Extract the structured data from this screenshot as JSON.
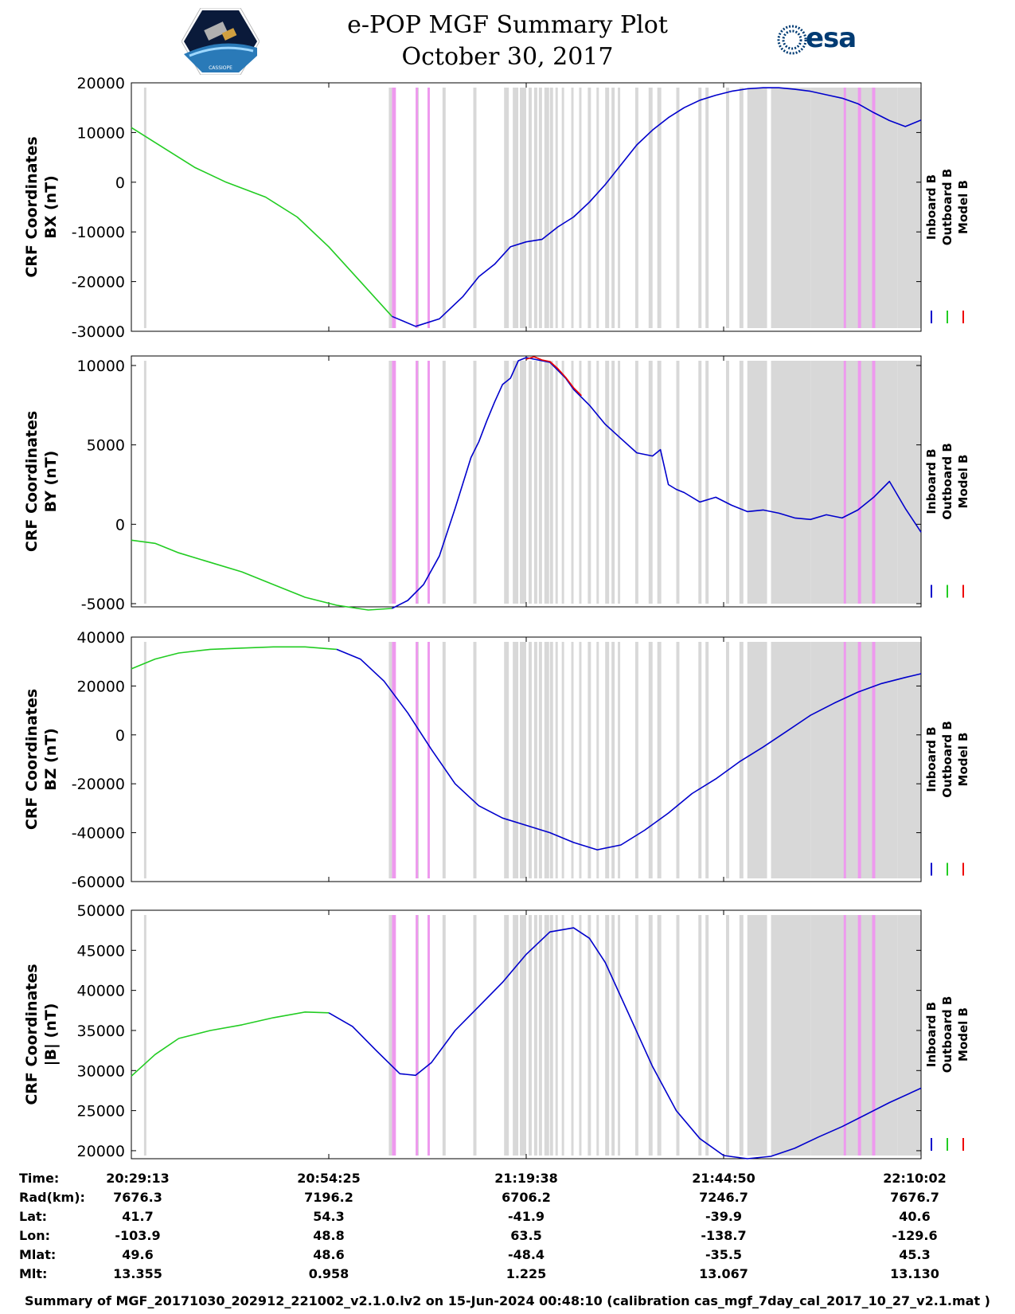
{
  "header": {
    "title": "e-POP MGF Summary Plot",
    "date": "October 30, 2017",
    "left_logo": "cassiope-satellite-logo",
    "left_logo_text": "CASSIOPE",
    "right_logo": "esa-logo",
    "right_logo_text": "esa"
  },
  "colors": {
    "inboard": "#0000cc",
    "outboard": "#22cc22",
    "model": "#ee0000",
    "gap_gray": "#d8d8d8",
    "gap_pink": "#ee99ee"
  },
  "legend": {
    "inboard": "Inboard B",
    "outboard": "Outboard B",
    "model": "Model B"
  },
  "chart_data": [
    {
      "type": "line",
      "ylabel_line1": "CRF Coordinates",
      "ylabel_line2": "BX (nT)",
      "ylim": [
        -30000,
        20000
      ],
      "yticks": [
        20000,
        10000,
        0,
        -10000,
        -20000,
        -30000
      ],
      "ytick_labels": [
        "20000",
        "10000",
        "0",
        "-10000",
        "-20000",
        "-30000"
      ],
      "series": [
        {
          "key": "outboard",
          "x": [
            0,
            0.03,
            0.08,
            0.12,
            0.17,
            0.21,
            0.25,
            0.29,
            0.33
          ],
          "values": [
            11000,
            8000,
            3000,
            0,
            -3000,
            -7000,
            -13000,
            -20000,
            -27000
          ]
        },
        {
          "key": "inboard",
          "x": [
            0.33,
            0.36,
            0.39,
            0.42,
            0.44,
            0.46,
            0.48,
            0.5,
            0.52,
            0.54,
            0.56,
            0.58,
            0.6,
            0.62,
            0.64,
            0.66,
            0.68,
            0.7,
            0.72,
            0.74,
            0.76,
            0.78,
            0.8,
            0.82,
            0.84,
            0.86,
            0.88,
            0.9,
            0.92,
            0.94,
            0.96,
            0.98,
            1.0
          ],
          "values": [
            -27000,
            -29000,
            -27500,
            -23000,
            -19000,
            -16500,
            -13000,
            -12000,
            -11500,
            -9000,
            -7000,
            -4000,
            -500,
            3500,
            7500,
            10500,
            13000,
            15000,
            16500,
            17500,
            18300,
            18800,
            19000,
            19000,
            18700,
            18300,
            17600,
            16900,
            15800,
            14000,
            12400,
            11200,
            12500
          ]
        }
      ]
    },
    {
      "type": "line",
      "ylabel_line1": "CRF Coordinates",
      "ylabel_line2": "BY (nT)",
      "ylim": [
        -5200,
        10600
      ],
      "yticks": [
        10000,
        5000,
        0,
        -5000
      ],
      "ytick_labels": [
        "10000",
        "5000",
        "0",
        "-5000"
      ],
      "series": [
        {
          "key": "outboard",
          "x": [
            0,
            0.03,
            0.06,
            0.1,
            0.14,
            0.18,
            0.22,
            0.26,
            0.3,
            0.33
          ],
          "values": [
            -1000,
            -1200,
            -1800,
            -2400,
            -3000,
            -3800,
            -4600,
            -5100,
            -5400,
            -5300
          ]
        },
        {
          "key": "inboard",
          "x": [
            0.33,
            0.35,
            0.37,
            0.39,
            0.41,
            0.43,
            0.44,
            0.45,
            0.46,
            0.47,
            0.48,
            0.49,
            0.5,
            0.51,
            0.52,
            0.53,
            0.54,
            0.55,
            0.56,
            0.57,
            0.58,
            0.6,
            0.62,
            0.64,
            0.66,
            0.67,
            0.68,
            0.69,
            0.7,
            0.72,
            0.74,
            0.76,
            0.78,
            0.8,
            0.82,
            0.84,
            0.86,
            0.88,
            0.9,
            0.92,
            0.94,
            0.96,
            0.98,
            1.0
          ],
          "values": [
            -5300,
            -4800,
            -3800,
            -2000,
            1000,
            4200,
            5200,
            6500,
            7700,
            8800,
            9200,
            10300,
            10500,
            10400,
            10300,
            10200,
            9700,
            9200,
            8500,
            8000,
            7500,
            6300,
            5400,
            4500,
            4300,
            4700,
            2500,
            2200,
            2000,
            1400,
            1700,
            1200,
            800,
            900,
            700,
            400,
            300,
            600,
            400,
            900,
            1700,
            2700,
            1000,
            -500
          ]
        },
        {
          "key": "model",
          "x": [
            0.5,
            0.51,
            0.52,
            0.53,
            0.54,
            0.55,
            0.56,
            0.57
          ],
          "values": [
            10400,
            10550,
            10350,
            10250,
            9800,
            9250,
            8600,
            8100
          ]
        }
      ]
    },
    {
      "type": "line",
      "ylabel_line1": "CRF Coordinates",
      "ylabel_line2": "BZ (nT)",
      "ylim": [
        -60000,
        40000
      ],
      "yticks": [
        40000,
        20000,
        0,
        -20000,
        -40000,
        -60000
      ],
      "ytick_labels": [
        "40000",
        "20000",
        "0",
        "-20000",
        "-40000",
        "-60000"
      ],
      "series": [
        {
          "key": "outboard",
          "x": [
            0,
            0.03,
            0.06,
            0.1,
            0.14,
            0.18,
            0.22,
            0.26
          ],
          "values": [
            27000,
            31000,
            33500,
            35000,
            35500,
            36000,
            36000,
            35000
          ]
        },
        {
          "key": "inboard",
          "x": [
            0.26,
            0.29,
            0.32,
            0.35,
            0.38,
            0.41,
            0.44,
            0.47,
            0.5,
            0.53,
            0.56,
            0.59,
            0.62,
            0.65,
            0.68,
            0.71,
            0.74,
            0.77,
            0.8,
            0.83,
            0.86,
            0.89,
            0.92,
            0.95,
            0.98,
            1.0
          ],
          "values": [
            35000,
            31000,
            22000,
            9000,
            -6000,
            -20000,
            -29000,
            -34000,
            -37000,
            -40000,
            -44000,
            -47000,
            -45000,
            -39000,
            -32000,
            -24000,
            -18000,
            -11000,
            -5000,
            1500,
            8000,
            13000,
            17500,
            21000,
            23500,
            25000
          ]
        }
      ]
    },
    {
      "type": "line",
      "ylabel_line1": "CRF Coordinates",
      "ylabel_line2": "|B| (nT)",
      "ylim": [
        19000,
        50000
      ],
      "yticks": [
        50000,
        45000,
        40000,
        35000,
        30000,
        25000,
        20000
      ],
      "ytick_labels": [
        "50000",
        "45000",
        "40000",
        "35000",
        "30000",
        "25000",
        "20000"
      ],
      "series": [
        {
          "key": "outboard",
          "x": [
            0,
            0.03,
            0.06,
            0.1,
            0.14,
            0.18,
            0.22,
            0.25
          ],
          "values": [
            29300,
            32000,
            34000,
            35000,
            35700,
            36600,
            37300,
            37200
          ]
        },
        {
          "key": "inboard",
          "x": [
            0.25,
            0.28,
            0.31,
            0.34,
            0.36,
            0.38,
            0.41,
            0.44,
            0.47,
            0.5,
            0.53,
            0.56,
            0.58,
            0.6,
            0.63,
            0.66,
            0.69,
            0.72,
            0.75,
            0.78,
            0.81,
            0.84,
            0.87,
            0.9,
            0.93,
            0.96,
            1.0
          ],
          "values": [
            37200,
            35500,
            32500,
            29600,
            29400,
            31000,
            35000,
            38000,
            41000,
            44500,
            47300,
            47800,
            46500,
            43500,
            37000,
            30500,
            25000,
            21500,
            19400,
            19000,
            19300,
            20300,
            21700,
            23000,
            24500,
            26000,
            27800
          ]
        }
      ]
    }
  ],
  "gaps": {
    "gray": [
      [
        0.016,
        0.019
      ],
      [
        0.326,
        0.33
      ],
      [
        0.36,
        0.364
      ],
      [
        0.394,
        0.398
      ],
      [
        0.433,
        0.437
      ],
      [
        0.472,
        0.478
      ],
      [
        0.483,
        0.49
      ],
      [
        0.492,
        0.5
      ],
      [
        0.503,
        0.507
      ],
      [
        0.51,
        0.514
      ],
      [
        0.516,
        0.52
      ],
      [
        0.523,
        0.529
      ],
      [
        0.53,
        0.534
      ],
      [
        0.537,
        0.54
      ],
      [
        0.545,
        0.548
      ],
      [
        0.557,
        0.56
      ],
      [
        0.567,
        0.57
      ],
      [
        0.578,
        0.582
      ],
      [
        0.589,
        0.592
      ],
      [
        0.6,
        0.605
      ],
      [
        0.608,
        0.612
      ],
      [
        0.616,
        0.619
      ],
      [
        0.638,
        0.642
      ],
      [
        0.655,
        0.66
      ],
      [
        0.666,
        0.671
      ],
      [
        0.69,
        0.694
      ],
      [
        0.718,
        0.722
      ],
      [
        0.727,
        0.731
      ],
      [
        0.753,
        0.757
      ],
      [
        0.77,
        0.775
      ],
      [
        0.78,
        0.805
      ],
      [
        0.81,
        0.86
      ],
      [
        0.86,
        0.97
      ],
      [
        0.97,
        1.0
      ]
    ],
    "pink": [
      [
        0.33,
        0.335
      ],
      [
        0.36,
        0.363
      ],
      [
        0.375,
        0.378
      ],
      [
        0.902,
        0.905
      ],
      [
        0.92,
        0.924
      ],
      [
        0.938,
        0.942
      ]
    ]
  },
  "info": {
    "labels": [
      "Time:",
      "Rad(km):",
      "Lat:",
      "Lon:",
      "Mlat:",
      "Mlt:"
    ],
    "columns": [
      {
        "Time": "20:29:13",
        "Rad": "7676.3",
        "Lat": "41.7",
        "Lon": "-103.9",
        "Mlat": "49.6",
        "Mlt": "13.355"
      },
      {
        "Time": "20:54:25",
        "Rad": "7196.2",
        "Lat": "54.3",
        "Lon": "48.8",
        "Mlat": "48.6",
        "Mlt": "0.958"
      },
      {
        "Time": "21:19:38",
        "Rad": "6706.2",
        "Lat": "-41.9",
        "Lon": "63.5",
        "Mlat": "-48.4",
        "Mlt": "1.225"
      },
      {
        "Time": "21:44:50",
        "Rad": "7246.7",
        "Lat": "-39.9",
        "Lon": "-138.7",
        "Mlat": "-35.5",
        "Mlt": "13.067"
      },
      {
        "Time": "22:10:02",
        "Rad": "7676.7",
        "Lat": "40.6",
        "Lon": "-129.6",
        "Mlat": "45.3",
        "Mlt": "13.130"
      }
    ]
  },
  "footer": "Summary of MGF_20171030_202912_221002_v2.1.0.lv2 on 15-Jun-2024 00:48:10 (calibration cas_mgf_7day_cal_2017_10_27_v2.1.mat )"
}
